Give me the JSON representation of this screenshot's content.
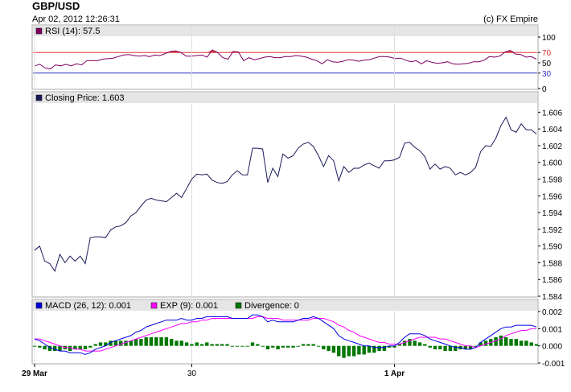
{
  "header": {
    "title": "GBP/USD",
    "timestamp": "Apr 02, 2012 12:26:31",
    "credit": "(c) FX Empire"
  },
  "chart_data": [
    {
      "type": "line",
      "panel": "rsi",
      "legend": "RSI (14): 57.5",
      "series_color": "#800060",
      "overbought_color": "#e03030",
      "oversold_color": "#3030c0",
      "ylim": [
        0,
        100
      ],
      "yticks": [
        "100",
        "70",
        "50",
        "30",
        "0"
      ],
      "ytick_values": [
        100,
        70,
        50,
        30,
        0
      ],
      "overbought": 70,
      "oversold": 30,
      "values": [
        44,
        47,
        40,
        38,
        46,
        44,
        47,
        44,
        48,
        46,
        54,
        54,
        54,
        57,
        58,
        59,
        62,
        65,
        66,
        64,
        63,
        64,
        62,
        65,
        64,
        68,
        72,
        73,
        70,
        63,
        63,
        64,
        65,
        61,
        75,
        70,
        60,
        57,
        72,
        71,
        54,
        60,
        56,
        58,
        61,
        62,
        60,
        60,
        62,
        62,
        64,
        63,
        61,
        57,
        54,
        48,
        56,
        52,
        51,
        53,
        56,
        55,
        53,
        55,
        56,
        59,
        62,
        62,
        61,
        58,
        59,
        55,
        52,
        54,
        48,
        54,
        51,
        49,
        50,
        52,
        48,
        47,
        48,
        49,
        52,
        52,
        55,
        62,
        61,
        63,
        71,
        74,
        67,
        66,
        61,
        62,
        57
      ]
    },
    {
      "type": "line",
      "panel": "price",
      "legend": "Closing Price: 1.603",
      "series_color": "#1a1a5a",
      "ylim": [
        1.584,
        1.607
      ],
      "yticks": [
        "1.606",
        "1.604",
        "1.602",
        "1.600",
        "1.598",
        "1.596",
        "1.594",
        "1.592",
        "1.590",
        "1.588",
        "1.586",
        "1.584"
      ],
      "ytick_values": [
        1.606,
        1.604,
        1.602,
        1.6,
        1.598,
        1.596,
        1.594,
        1.592,
        1.59,
        1.588,
        1.586,
        1.584
      ],
      "values": [
        1.5895,
        1.59,
        1.5882,
        1.5879,
        1.587,
        1.589,
        1.588,
        1.5888,
        1.5882,
        1.5888,
        1.5879,
        1.591,
        1.5911,
        1.5911,
        1.591,
        1.5919,
        1.5923,
        1.5924,
        1.5928,
        1.5936,
        1.594,
        1.5948,
        1.5955,
        1.5957,
        1.5955,
        1.5954,
        1.5953,
        1.5958,
        1.5963,
        1.5958,
        1.5969,
        1.598,
        1.5986,
        1.5985,
        1.5986,
        1.5979,
        1.5976,
        1.5975,
        1.5977,
        1.5985,
        1.599,
        1.5985,
        1.5985,
        1.6017,
        1.6017,
        1.6016,
        1.5976,
        1.5993,
        1.5983,
        1.601,
        1.6005,
        1.6008,
        1.6017,
        1.6022,
        1.6024,
        1.6019,
        1.6008,
        1.5995,
        1.6008,
        1.6002,
        1.5978,
        1.5995,
        1.5988,
        1.5993,
        1.5993,
        1.5997,
        1.5999,
        1.5996,
        1.5993,
        1.6002,
        1.6002,
        1.6003,
        1.6006,
        1.6023,
        1.6024,
        1.6018,
        1.6014,
        1.6007,
        1.5992,
        1.5998,
        1.5992,
        1.5995,
        1.5993,
        1.5985,
        1.5988,
        1.5985,
        1.5988,
        1.5994,
        1.6013,
        1.602,
        1.6019,
        1.6029,
        1.6044,
        1.6054,
        1.6039,
        1.6036,
        1.6046,
        1.6039,
        1.6039,
        1.6034
      ],
      "xticks": [
        "29 Mar",
        "30",
        "1 Apr"
      ],
      "xtick_index": [
        0,
        31,
        71
      ]
    },
    {
      "type": "line",
      "panel": "macd",
      "ylim": [
        -0.001,
        0.002
      ],
      "yticks": [
        "0.002",
        "0.001",
        "0.000",
        "-0.001"
      ],
      "ytick_values": [
        0.002,
        0.001,
        0.0,
        -0.001
      ],
      "legend": [
        {
          "label": "MACD (26, 12): 0.001",
          "color": "#0000e0"
        },
        {
          "label": "EXP (9): 0.001",
          "color": "#ff00ff"
        },
        {
          "label": "Divergence: 0",
          "color": "#007700"
        }
      ],
      "macd": [
        0.0004,
        0.0003,
        0.0001,
        -0.0001,
        -0.0002,
        -0.0003,
        -0.0003,
        -0.0004,
        -0.0004,
        -0.0004,
        -0.0005,
        -0.0004,
        -0.0002,
        -0.0001,
        0.0,
        0.0002,
        0.0003,
        0.0004,
        0.0005,
        0.0006,
        0.0008,
        0.0009,
        0.0011,
        0.0012,
        0.0013,
        0.0014,
        0.0015,
        0.0015,
        0.0015,
        0.0016,
        0.0015,
        0.0015,
        0.0016,
        0.0016,
        0.0017,
        0.0017,
        0.0017,
        0.0017,
        0.0017,
        0.0016,
        0.0016,
        0.0016,
        0.0016,
        0.0018,
        0.0018,
        0.0017,
        0.0014,
        0.0015,
        0.0014,
        0.0014,
        0.0014,
        0.0014,
        0.0015,
        0.0016,
        0.0016,
        0.0017,
        0.0016,
        0.0014,
        0.0012,
        0.001,
        0.0006,
        0.0004,
        0.0003,
        0.0002,
        0.0001,
        0.0,
        0.0,
        -0.0001,
        -0.0001,
        -0.0001,
        0.0,
        0.0,
        0.0002,
        0.0005,
        0.0007,
        0.0007,
        0.0007,
        0.0006,
        0.0004,
        0.0003,
        0.0002,
        0.0001,
        0.0,
        -0.0001,
        -0.0001,
        -0.0002,
        -0.0002,
        -0.0001,
        0.0002,
        0.0004,
        0.0006,
        0.0008,
        0.001,
        0.0011,
        0.0011,
        0.0012,
        0.0012,
        0.0012,
        0.0012,
        0.0011
      ],
      "exp": [
        0.0004,
        0.0004,
        0.0003,
        0.0002,
        0.0001,
        0.0,
        -0.0001,
        -0.0001,
        -0.0002,
        -0.0002,
        -0.0003,
        -0.0003,
        -0.0003,
        -0.0003,
        -0.0002,
        -0.0001,
        0.0,
        0.0001,
        0.0002,
        0.0003,
        0.0004,
        0.0005,
        0.0006,
        0.0007,
        0.0008,
        0.0009,
        0.001,
        0.0011,
        0.0012,
        0.0013,
        0.0013,
        0.0014,
        0.0014,
        0.0015,
        0.0015,
        0.0016,
        0.0016,
        0.0016,
        0.0016,
        0.0016,
        0.0016,
        0.0016,
        0.0016,
        0.0016,
        0.0017,
        0.0017,
        0.0016,
        0.0016,
        0.0016,
        0.0015,
        0.0015,
        0.0015,
        0.0015,
        0.0015,
        0.0015,
        0.0016,
        0.0016,
        0.0016,
        0.0015,
        0.0014,
        0.0012,
        0.0011,
        0.0009,
        0.0008,
        0.0006,
        0.0005,
        0.0004,
        0.0003,
        0.0002,
        0.0002,
        0.0001,
        0.0001,
        0.0001,
        0.0002,
        0.0003,
        0.0004,
        0.0005,
        0.0005,
        0.0005,
        0.0005,
        0.0004,
        0.0004,
        0.0003,
        0.0002,
        0.0001,
        0.0,
        0.0,
        -0.0001,
        0.0,
        0.0001,
        0.0002,
        0.0003,
        0.0004,
        0.0006,
        0.0007,
        0.0008,
        0.0009,
        0.0009,
        0.001,
        0.001
      ]
    }
  ]
}
